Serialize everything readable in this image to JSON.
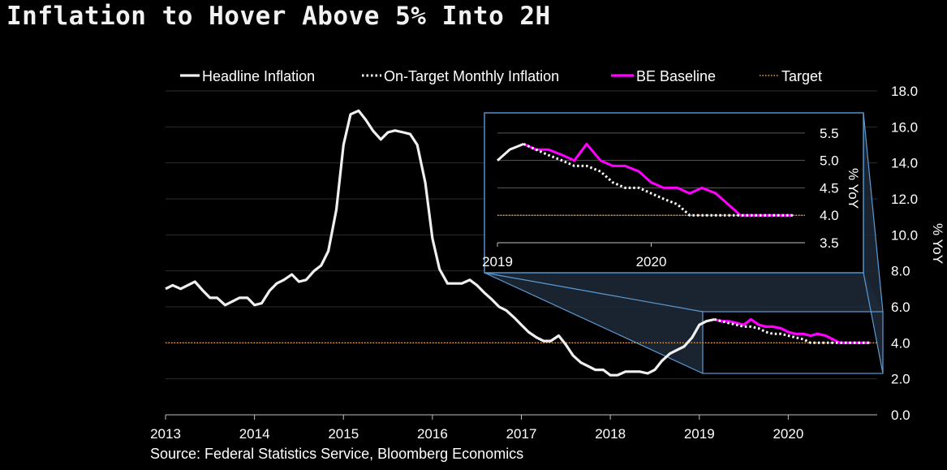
{
  "title": "Inflation to Hover Above 5% Into 2H",
  "source": "Source: Federal Statistics Service, Bloomberg Economics",
  "colors": {
    "background": "#000000",
    "headline": "#f0f0f0",
    "on_target": "#ffffff",
    "baseline": "#ff00ff",
    "target": "#f0a040",
    "inset_border": "#5b9bd5",
    "inset_fill": "#1f2a38"
  },
  "chart_data": [
    {
      "type": "line",
      "xlabel": "",
      "ylabel": "% YoY",
      "x_ticks": [
        "2013",
        "2014",
        "2015",
        "2016",
        "2017",
        "2018",
        "2019",
        "2020"
      ],
      "y_ticks": [
        "0.0",
        "2.0",
        "4.0",
        "6.0",
        "8.0",
        "10.0",
        "12.0",
        "14.0",
        "16.0",
        "18.0"
      ],
      "xlim": [
        2013.0,
        2021.0
      ],
      "ylim": [
        0,
        18
      ],
      "legend_position": "top",
      "grid": true,
      "series": [
        {
          "name": "Headline Inflation",
          "style": "solid",
          "x": [
            2013.0,
            2013.08,
            2013.17,
            2013.25,
            2013.33,
            2013.42,
            2013.5,
            2013.58,
            2013.67,
            2013.75,
            2013.83,
            2013.92,
            2014.0,
            2014.08,
            2014.17,
            2014.25,
            2014.33,
            2014.42,
            2014.5,
            2014.58,
            2014.67,
            2014.75,
            2014.83,
            2014.92,
            2015.0,
            2015.08,
            2015.17,
            2015.25,
            2015.33,
            2015.42,
            2015.5,
            2015.58,
            2015.67,
            2015.75,
            2015.83,
            2015.92,
            2016.0,
            2016.08,
            2016.17,
            2016.25,
            2016.33,
            2016.42,
            2016.5,
            2016.58,
            2016.67,
            2016.75,
            2016.83,
            2016.92,
            2017.0,
            2017.08,
            2017.17,
            2017.25,
            2017.33,
            2017.42,
            2017.5,
            2017.58,
            2017.67,
            2017.75,
            2017.83,
            2017.92,
            2018.0,
            2018.08,
            2018.17,
            2018.25,
            2018.33,
            2018.42,
            2018.5,
            2018.58,
            2018.67,
            2018.75,
            2018.83,
            2018.92,
            2019.0,
            2019.08,
            2019.17
          ],
          "values": [
            7.0,
            7.2,
            7.0,
            7.2,
            7.4,
            6.9,
            6.5,
            6.5,
            6.1,
            6.3,
            6.5,
            6.5,
            6.1,
            6.2,
            6.9,
            7.3,
            7.5,
            7.8,
            7.4,
            7.5,
            8.0,
            8.3,
            9.1,
            11.4,
            15.0,
            16.7,
            16.9,
            16.4,
            15.8,
            15.3,
            15.7,
            15.8,
            15.7,
            15.6,
            15.0,
            12.9,
            9.8,
            8.1,
            7.3,
            7.3,
            7.3,
            7.5,
            7.2,
            6.8,
            6.4,
            6.0,
            5.8,
            5.4,
            5.0,
            4.6,
            4.3,
            4.1,
            4.1,
            4.4,
            3.9,
            3.3,
            2.9,
            2.7,
            2.5,
            2.5,
            2.2,
            2.2,
            2.4,
            2.4,
            2.4,
            2.3,
            2.5,
            3.0,
            3.4,
            3.6,
            3.8,
            4.3,
            5.0,
            5.2,
            5.3
          ]
        },
        {
          "name": "On-Target Monthly Inflation",
          "style": "dotted",
          "x": [
            2019.17,
            2019.25,
            2019.33,
            2019.42,
            2019.5,
            2019.58,
            2019.67,
            2019.75,
            2019.83,
            2019.92,
            2020.0,
            2020.08,
            2020.17,
            2020.25,
            2020.33,
            2020.42,
            2020.5,
            2020.58,
            2020.67,
            2020.75,
            2020.83,
            2020.92
          ],
          "values": [
            5.3,
            5.2,
            5.1,
            5.0,
            4.9,
            4.9,
            4.8,
            4.6,
            4.5,
            4.5,
            4.4,
            4.3,
            4.2,
            4.0,
            4.0,
            4.0,
            4.0,
            4.0,
            4.0,
            4.0,
            4.0,
            4.0
          ]
        },
        {
          "name": "BE Baseline",
          "style": "solid",
          "x": [
            2019.17,
            2019.25,
            2019.33,
            2019.42,
            2019.5,
            2019.58,
            2019.67,
            2019.75,
            2019.83,
            2019.92,
            2020.0,
            2020.08,
            2020.17,
            2020.25,
            2020.33,
            2020.42,
            2020.5,
            2020.58,
            2020.67,
            2020.75,
            2020.83,
            2020.92
          ],
          "values": [
            5.3,
            5.2,
            5.2,
            5.1,
            5.0,
            5.3,
            5.0,
            4.9,
            4.9,
            4.8,
            4.6,
            4.5,
            4.5,
            4.4,
            4.5,
            4.4,
            4.2,
            4.0,
            4.0,
            4.0,
            4.0,
            4.0
          ]
        },
        {
          "name": "Target",
          "style": "dotted",
          "x": [
            2013.0,
            2021.0
          ],
          "values": [
            4.0,
            4.0
          ]
        }
      ]
    },
    {
      "type": "line",
      "xlabel": "",
      "ylabel": "% YoY",
      "x_ticks": [
        "2019",
        "2020"
      ],
      "y_ticks": [
        "3.5",
        "4.0",
        "4.5",
        "5.0",
        "5.5"
      ],
      "xlim": [
        2019.0,
        2021.0
      ],
      "ylim": [
        3.5,
        5.75
      ],
      "grid": true,
      "series": [
        {
          "name": "Headline Inflation",
          "x": [
            2019.0,
            2019.08,
            2019.17
          ],
          "values": [
            5.0,
            5.2,
            5.3
          ]
        },
        {
          "name": "On-Target Monthly Inflation",
          "x": [
            2019.17,
            2019.25,
            2019.33,
            2019.42,
            2019.5,
            2019.58,
            2019.67,
            2019.75,
            2019.83,
            2019.92,
            2020.0,
            2020.08,
            2020.17,
            2020.25,
            2020.33,
            2020.42,
            2020.5,
            2020.58,
            2020.67,
            2020.75,
            2020.83,
            2020.92
          ],
          "values": [
            5.3,
            5.2,
            5.1,
            5.0,
            4.9,
            4.9,
            4.8,
            4.6,
            4.5,
            4.5,
            4.4,
            4.3,
            4.2,
            4.0,
            4.0,
            4.0,
            4.0,
            4.0,
            4.0,
            4.0,
            4.0,
            4.0
          ]
        },
        {
          "name": "BE Baseline",
          "x": [
            2019.17,
            2019.25,
            2019.33,
            2019.42,
            2019.5,
            2019.58,
            2019.67,
            2019.75,
            2019.83,
            2019.92,
            2020.0,
            2020.08,
            2020.17,
            2020.25,
            2020.33,
            2020.42,
            2020.5,
            2020.58,
            2020.67,
            2020.75,
            2020.83,
            2020.92
          ],
          "values": [
            5.3,
            5.2,
            5.2,
            5.1,
            5.0,
            5.3,
            5.0,
            4.9,
            4.9,
            4.8,
            4.6,
            4.5,
            4.5,
            4.4,
            4.5,
            4.4,
            4.2,
            4.0,
            4.0,
            4.0,
            4.0,
            4.0
          ]
        },
        {
          "name": "Target",
          "x": [
            2019.0,
            2021.0
          ],
          "values": [
            4.0,
            4.0
          ]
        }
      ]
    }
  ],
  "legend": [
    {
      "label": "Headline Inflation",
      "style": "solid",
      "color": "#f0f0f0"
    },
    {
      "label": "On-Target Monthly Inflation",
      "style": "dotted",
      "color": "#ffffff"
    },
    {
      "label": "BE Baseline",
      "style": "solid",
      "color": "#ff00ff"
    },
    {
      "label": "Target",
      "style": "dotted",
      "color": "#f0a040"
    }
  ]
}
